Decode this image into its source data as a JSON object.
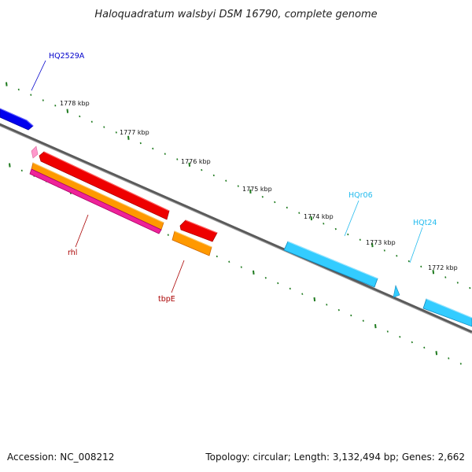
{
  "title": "Haloquadratum walsbyi DSM 16790, complete genome",
  "footer": {
    "accession": "Accession: NC_008212",
    "topology": "Topology: circular; Length: 3,132,494 bp; Genes: 2,662"
  },
  "colors": {
    "backbone": "#7a7a7a",
    "tick": "#1e7a1e",
    "blue_gene": "#0000ee",
    "red_gene": "#ee0000",
    "orange_gene": "#ff9900",
    "pink_gene": "#ee2299",
    "light_pink_gene": "#ff99cc",
    "cyan_gene": "#33ccff",
    "label_blue": "#0000cc",
    "label_red": "#aa0000",
    "label_cyan": "#22bbee"
  },
  "kbp_labels": [
    "1778 kbp",
    "1777 kbp",
    "1776 kbp",
    "1775 kbp",
    "1774 kbp",
    "1773 kbp",
    "1772 kbp"
  ],
  "gene_labels": [
    "HQ2529A",
    "rhl",
    "tbpE",
    "HQr06",
    "HQt24"
  ]
}
